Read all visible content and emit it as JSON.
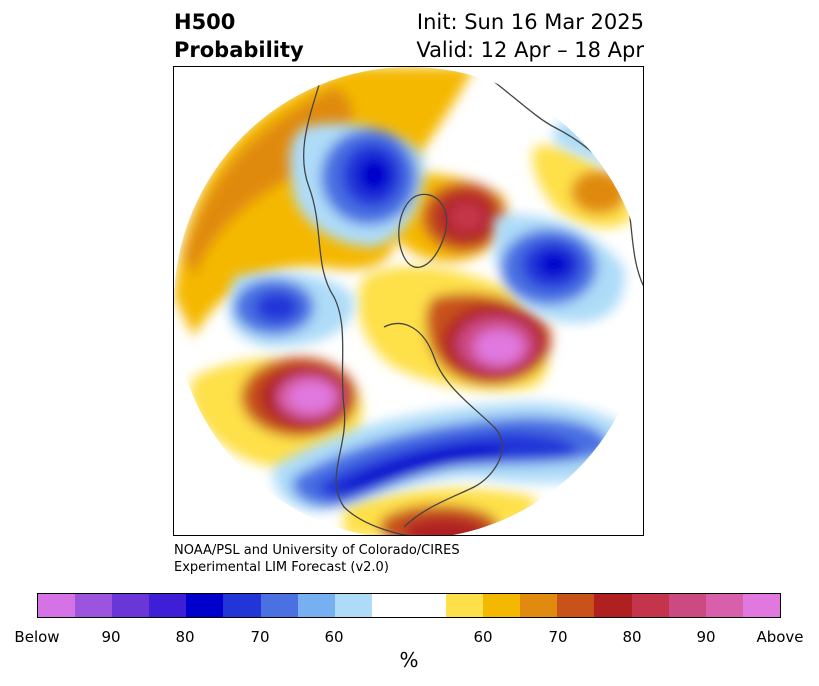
{
  "header": {
    "variable": "H500",
    "product": "Probability",
    "init": "Init: Sun 16 Mar 2025",
    "valid": "Valid: 12 Apr – 18 Apr"
  },
  "credit": {
    "line1": "NOAA/PSL and University of Colorado/CIRES",
    "line2": "Experimental LIM Forecast (v2.0)"
  },
  "colorbar": {
    "colors": [
      "#d572e6",
      "#9c54de",
      "#6a36d8",
      "#3f1ed8",
      "#0000cc",
      "#2236d8",
      "#4a70e2",
      "#76b0f0",
      "#aedcf8",
      "#ffffff",
      "#ffffff",
      "#fee04a",
      "#f5b800",
      "#e08a10",
      "#c8521a",
      "#b02020",
      "#c4344a",
      "#cc4a82",
      "#d860aa",
      "#e078e0"
    ],
    "tick_labels": [
      "Below",
      "90",
      "80",
      "70",
      "60",
      "60",
      "70",
      "80",
      "90",
      "Above"
    ],
    "unit": "%"
  },
  "map": {
    "projection": "north-polar-stereographic",
    "anomalies": [
      {
        "region": "north-pacific-gulf-of-alaska",
        "sign": "above",
        "max_level": "Above"
      },
      {
        "region": "north-atlantic-greenland-south",
        "sign": "above",
        "max_level": "Above"
      },
      {
        "region": "barents-kara-sea",
        "sign": "above",
        "max_level": "90"
      },
      {
        "region": "southeastern-us-gulf-of-mexico",
        "sign": "above",
        "max_level": "80"
      },
      {
        "region": "central-east-us-atlantic",
        "sign": "below",
        "max_level": "90"
      },
      {
        "region": "western-siberia",
        "sign": "below",
        "max_level": "90"
      },
      {
        "region": "east-siberia-sea",
        "sign": "below",
        "max_level": "90"
      },
      {
        "region": "europe-scandinavia",
        "sign": "below",
        "max_level": "90"
      },
      {
        "region": "bering-sea-west-pacific",
        "sign": "below",
        "max_level": "80"
      }
    ]
  }
}
